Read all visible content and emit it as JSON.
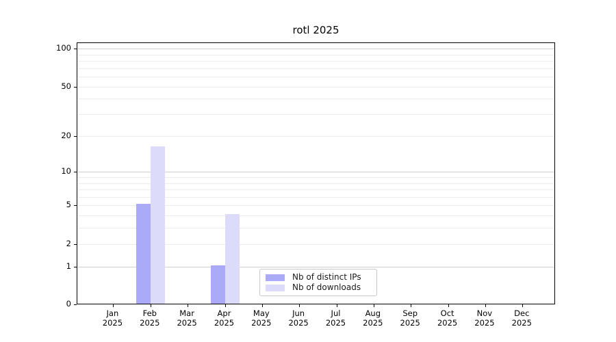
{
  "title": "rotl 2025",
  "legend": {
    "items": [
      {
        "label": "Nb of distinct IPs",
        "color": "#abaaf8"
      },
      {
        "label": "Nb of downloads",
        "color": "#dcdbfa"
      }
    ]
  },
  "y_axis": {
    "tick_labels": [
      "0",
      "1",
      "2",
      "5",
      "10",
      "20",
      "50",
      "100"
    ],
    "scale": "log1p"
  },
  "chart_data": {
    "type": "bar",
    "title": "rotl 2025",
    "categories": [
      "Jan 2025",
      "Feb 2025",
      "Mar 2025",
      "Apr 2025",
      "May 2025",
      "Jun 2025",
      "Jul 2025",
      "Aug 2025",
      "Sep 2025",
      "Oct 2025",
      "Nov 2025",
      "Dec 2025"
    ],
    "series": [
      {
        "name": "Nb of distinct IPs",
        "color": "#abaaf8",
        "values": [
          0,
          5,
          0,
          1,
          0,
          0,
          0,
          0,
          0,
          0,
          0,
          0
        ]
      },
      {
        "name": "Nb of downloads",
        "color": "#dcdbfa",
        "values": [
          0,
          16,
          0,
          4,
          0,
          0,
          0,
          0,
          0,
          0,
          0,
          0
        ]
      }
    ],
    "xlabel": "",
    "ylabel": "",
    "yscale": "log1p",
    "ylim": [
      0,
      110
    ],
    "ytick_values": [
      0,
      1,
      2,
      5,
      10,
      20,
      50,
      100
    ],
    "minor_gridline_values": [
      2,
      3,
      4,
      5,
      6,
      7,
      8,
      9,
      20,
      30,
      40,
      50,
      60,
      70,
      80,
      90
    ],
    "major_gridline_values": [
      1,
      10,
      100
    ],
    "grid_color_minor": "#ebebeb",
    "grid_color_major": "#cfcfcf",
    "legend_position": "lower-center",
    "background": "#ffffff"
  }
}
